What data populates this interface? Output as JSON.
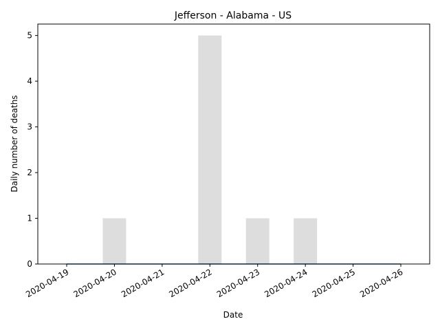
{
  "chart_data": {
    "type": "bar",
    "title": "Jefferson - Alabama - US",
    "xlabel": "Date",
    "ylabel": "Daily number of deaths",
    "categories": [
      "2020-04-19",
      "2020-04-20",
      "2020-04-21",
      "2020-04-22",
      "2020-04-23",
      "2020-04-24",
      "2020-04-25",
      "2020-04-26"
    ],
    "series": [
      {
        "values": [
          0,
          1,
          0,
          5,
          1,
          1,
          0,
          0
        ],
        "color": "#dddddd"
      },
      {
        "type": "line",
        "values": [
          0,
          0,
          0,
          0,
          0,
          0,
          0,
          0
        ],
        "color": "#1f77b4"
      }
    ],
    "x_ticks": [
      "2020-04-19",
      "2020-04-20",
      "2020-04-21",
      "2020-04-22",
      "2020-04-23",
      "2020-04-24",
      "2020-04-25",
      "2020-04-26"
    ],
    "y_ticks": [
      "0",
      "1",
      "2",
      "3",
      "4",
      "5"
    ],
    "ylim": [
      0,
      5.25
    ],
    "grid": false
  }
}
